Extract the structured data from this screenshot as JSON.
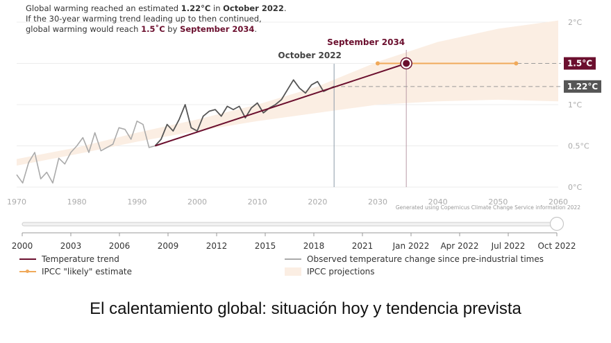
{
  "annotation": {
    "line1_pre": "Global warming reached an estimated ",
    "line1_val": "1.22°C",
    "line1_mid": " in ",
    "line1_date": "October 2022",
    "line1_post": ".",
    "line2": "If the 30-year warming trend leading up to then continued,",
    "line3_pre": "global warming would reach ",
    "line3_val": "1.5˚C",
    "line3_mid": " by ",
    "line3_date": "September 2034",
    "line3_post": "."
  },
  "markers": {
    "now_label": "October 2022",
    "target_label": "September 2034",
    "badge_15": "1.5°C",
    "badge_122": "1.22°C"
  },
  "credit": "Generated using Copernicus Climate Change Service information 2022",
  "slider": {
    "ticks": [
      "2000",
      "2003",
      "2006",
      "2009",
      "2012",
      "2015",
      "2018",
      "2021",
      "Jan 2022",
      "Apr 2022",
      "Jul 2022",
      "Oct 2022"
    ],
    "value_fraction": 1.0
  },
  "legend": {
    "trend": "Temperature trend",
    "observed": "Observed temperature change since pre-industrial times",
    "ipcc_estimate": "IPCC \"likely\" estimate",
    "ipcc_projections": "IPCC projections"
  },
  "caption": "El calentamiento global: situación hoy y tendencia prevista",
  "colors": {
    "trend": "#6b0f2e",
    "observed_recent": "#555555",
    "observed_early": "#aaaaaa",
    "ipcc_estimate": "#f0a95a",
    "projection_band": "#fbeee3",
    "badge_15": "#6b0f2e",
    "badge_122": "#555555"
  },
  "chart_data": {
    "type": "line",
    "title": "",
    "xlabel": "",
    "ylabel": "",
    "xlim": [
      1970,
      2060
    ],
    "ylim": [
      0,
      2
    ],
    "x_ticks": [
      "1970",
      "1980",
      "1990",
      "2000",
      "2010",
      "2020",
      "2030",
      "2040",
      "2050",
      "2060"
    ],
    "y_ticks": [
      "0°C",
      "0.5°C",
      "1°C",
      "1.5°C",
      "2°C"
    ],
    "grid": true,
    "series": [
      {
        "name": "Observed temperature change since pre-industrial times",
        "x": [
          1970,
          1971,
          1972,
          1973,
          1974,
          1975,
          1976,
          1977,
          1978,
          1979,
          1980,
          1981,
          1982,
          1983,
          1984,
          1985,
          1986,
          1987,
          1988,
          1989,
          1990,
          1991,
          1992,
          1993,
          1994,
          1995,
          1996,
          1997,
          1998,
          1999,
          2000,
          2001,
          2002,
          2003,
          2004,
          2005,
          2006,
          2007,
          2008,
          2009,
          2010,
          2011,
          2012,
          2013,
          2014,
          2015,
          2016,
          2017,
          2018,
          2019,
          2020,
          2021,
          2022.75
        ],
        "y": [
          0.15,
          0.05,
          0.3,
          0.42,
          0.1,
          0.18,
          0.05,
          0.35,
          0.28,
          0.42,
          0.5,
          0.6,
          0.42,
          0.66,
          0.44,
          0.48,
          0.52,
          0.72,
          0.7,
          0.58,
          0.8,
          0.76,
          0.48,
          0.5,
          0.58,
          0.76,
          0.68,
          0.82,
          1.0,
          0.72,
          0.68,
          0.86,
          0.92,
          0.94,
          0.86,
          0.98,
          0.94,
          0.98,
          0.84,
          0.96,
          1.02,
          0.9,
          0.96,
          1.0,
          1.06,
          1.18,
          1.3,
          1.2,
          1.14,
          1.24,
          1.28,
          1.16,
          1.22
        ]
      },
      {
        "name": "Temperature trend",
        "x": [
          1993,
          2034.75
        ],
        "y": [
          0.5,
          1.5
        ]
      },
      {
        "name": "IPCC \"likely\" estimate",
        "x": [
          2030,
          2053
        ],
        "y": [
          1.5,
          1.5
        ]
      },
      {
        "name": "IPCC projections",
        "x": [
          1970,
          1980,
          1990,
          2000,
          2010,
          2020,
          2030,
          2040,
          2050,
          2060
        ],
        "y_low": [
          0.26,
          0.4,
          0.55,
          0.68,
          0.8,
          0.9,
          1.0,
          1.04,
          1.06,
          1.04
        ],
        "y_high": [
          0.34,
          0.48,
          0.66,
          0.82,
          1.0,
          1.22,
          1.52,
          1.76,
          1.92,
          2.02
        ]
      }
    ],
    "annotations": [
      {
        "text": "October 2022",
        "x": 2022.75
      },
      {
        "text": "September 2034",
        "x": 2034.75
      },
      {
        "text": "1.5°C",
        "y": 1.5
      },
      {
        "text": "1.22°C",
        "y": 1.22
      }
    ]
  }
}
